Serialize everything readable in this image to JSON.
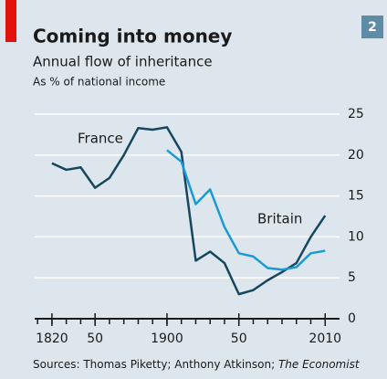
{
  "chart_data": {
    "type": "line",
    "badge": "2",
    "title": "Coming into money",
    "subtitle": "Annual flow of inheritance",
    "unit_note": "As % of national income",
    "source": {
      "text": "Sources: Thomas Piketty; Anthony Atkinson; ",
      "italic": "The Economist"
    },
    "annotations": [
      "France",
      "Britain"
    ],
    "x": [
      1820,
      1830,
      1840,
      1850,
      1860,
      1870,
      1880,
      1890,
      1900,
      1910,
      1920,
      1930,
      1940,
      1950,
      1960,
      1970,
      1980,
      1990,
      2000,
      2010
    ],
    "series": [
      {
        "name": "France",
        "color": "#17475f",
        "values": [
          19,
          18.2,
          18.5,
          16,
          17.2,
          20,
          23.3,
          23.1,
          23.4,
          20.4,
          7.1,
          8.2,
          6.8,
          3,
          3.5,
          4.7,
          5.7,
          6.8,
          10,
          12.6
        ]
      },
      {
        "name": "Britain",
        "color": "#1c9ad6",
        "values": [
          null,
          null,
          null,
          null,
          null,
          null,
          null,
          null,
          20.6,
          19.2,
          14,
          15.8,
          11.2,
          8,
          7.6,
          6.2,
          6,
          6.3,
          8,
          8.3
        ]
      }
    ],
    "xlim": [
      1808,
      2020
    ],
    "xticks": [
      1820,
      {
        "value": 1850,
        "label": "50"
      },
      1900,
      {
        "value": 1950,
        "label": "50"
      },
      2010
    ],
    "xminorticks": [
      1810,
      1820,
      1830,
      1840,
      1850,
      1860,
      1870,
      1880,
      1890,
      1900,
      1910,
      1920,
      1930,
      1940,
      1950,
      1960,
      1970,
      1980,
      1990,
      2000,
      2010
    ],
    "ylim": [
      0,
      25
    ],
    "yticks": [
      0,
      5,
      10,
      15,
      20,
      25
    ],
    "grid": true,
    "background": "#dde6ec"
  }
}
